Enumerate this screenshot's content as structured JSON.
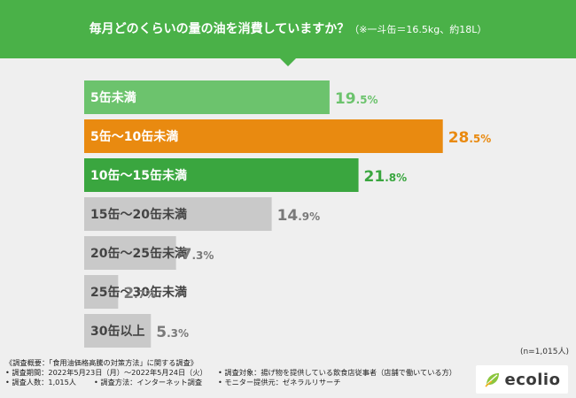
{
  "title": {
    "main": "毎月どのくらいの量の油を消費していますか？",
    "note": "（※一斗缶＝16.5kg、約18L）"
  },
  "colors": {
    "header": "#4ab148",
    "light_green": "#6cc36d",
    "orange": "#e98a10",
    "green": "#3aa63f",
    "gray": "#c9c9c9",
    "gray_text": "#7a7a7a"
  },
  "chart_data": {
    "type": "bar",
    "orientation": "horizontal",
    "unit": "%",
    "xlim": [
      0,
      30
    ],
    "categories": [
      "5缶未満",
      "5缶～10缶未満",
      "10缶～15缶未満",
      "15缶～20缶未満",
      "20缶～25缶未満",
      "25缶～30缶未満",
      "30缶以上"
    ],
    "values": [
      19.5,
      28.5,
      21.8,
      14.9,
      7.3,
      2.7,
      5.3
    ],
    "value_labels": [
      {
        "int": "19",
        "dec": ".5%"
      },
      {
        "int": "28",
        "dec": ".5%"
      },
      {
        "int": "21",
        "dec": ".8%"
      },
      {
        "int": "14",
        "dec": ".9%"
      },
      {
        "int": "7",
        "dec": ".3%"
      },
      {
        "int": "2",
        "dec": ".7%"
      },
      {
        "int": "5",
        "dec": ".3%"
      }
    ],
    "bar_colors": [
      "#6cc36d",
      "#e98a10",
      "#3aa63f",
      "#c9c9c9",
      "#c9c9c9",
      "#c9c9c9",
      "#c9c9c9"
    ],
    "value_colors": [
      "#6cc36d",
      "#e98a10",
      "#3aa63f",
      "#7a7a7a",
      "#7a7a7a",
      "#7a7a7a",
      "#7a7a7a"
    ],
    "label_colors": [
      "#ffffff",
      "#ffffff",
      "#ffffff",
      "#444444",
      "#444444",
      "#444444",
      "#444444"
    ]
  },
  "sample_note": "(n=1,015人)",
  "footer": {
    "overview": "《調査概要：「食用油価格高騰の対策方法」に関する調査》",
    "period": "• 調査期間：2022年5月23日（月）～2022年5月24日（火）",
    "respondents": "• 調査人数：1,015人",
    "method": "• 調査方法：インターネット調査",
    "target": "• 調査対象：揚げ物を提供している飲食店従事者（店舗で働いている方）",
    "provider": "• モニター提供元：ゼネラルリサーチ"
  },
  "logo": {
    "text": "ecolio"
  }
}
